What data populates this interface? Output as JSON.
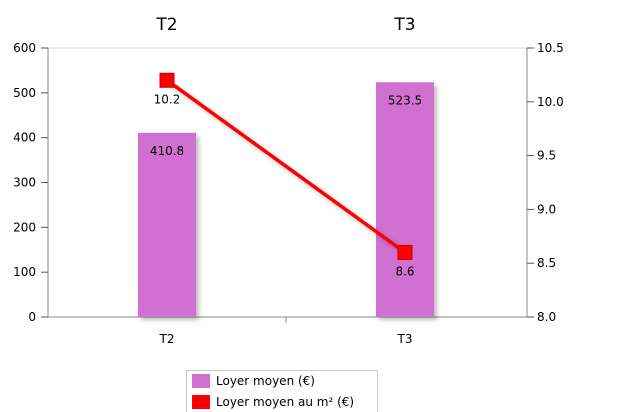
{
  "chart_data": {
    "type": "bar",
    "categories": [
      "T2",
      "T3"
    ],
    "top_titles": [
      "T2",
      "T3"
    ],
    "series": [
      {
        "name": "Loyer moyen (€)",
        "kind": "bar",
        "axis": "left",
        "values": [
          410.8,
          523.5
        ],
        "labels": [
          "410.8",
          "523.5"
        ],
        "color": "#d070d0"
      },
      {
        "name": "Loyer moyen au m² (€)",
        "kind": "line",
        "axis": "right",
        "values": [
          10.2,
          8.6
        ],
        "labels": [
          "10.2",
          "8.6"
        ],
        "color": "#ff0000"
      }
    ],
    "ylim_left": [
      0,
      600
    ],
    "yticks_left": [
      "0",
      "100",
      "200",
      "300",
      "400",
      "500",
      "600"
    ],
    "ylim_right": [
      8.0,
      10.5
    ],
    "yticks_right": [
      "8.0",
      "8.5",
      "9.0",
      "9.5",
      "10.0",
      "10.5"
    ],
    "grid": false,
    "legend": "bottom-center"
  },
  "legend": {
    "items": [
      {
        "label": "Loyer moyen (€)",
        "color": "#d070d0"
      },
      {
        "label": "Loyer moyen au m² (€)",
        "color": "#ff0000"
      }
    ]
  }
}
